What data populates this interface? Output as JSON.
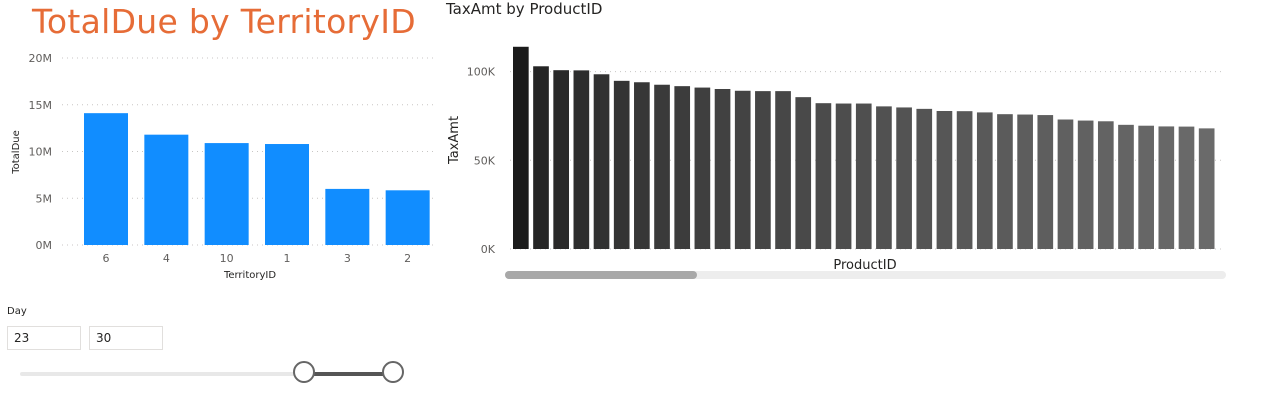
{
  "chart_data": [
    {
      "type": "bar",
      "title": "TotalDue by TerritoryID",
      "xlabel": "TerritoryID",
      "ylabel": "TotalDue",
      "categories": [
        "6",
        "4",
        "10",
        "1",
        "3",
        "2"
      ],
      "values": [
        14100000,
        11800000,
        10900000,
        10800000,
        6000000,
        5850000
      ],
      "ylim": [
        0,
        20000000
      ],
      "yticks": [
        0,
        5000000,
        10000000,
        15000000,
        20000000
      ],
      "ytick_labels": [
        "0M",
        "5M",
        "10M",
        "15M",
        "20M"
      ],
      "grid": true,
      "color": "#118dff"
    },
    {
      "type": "bar",
      "title": "TaxAmt by ProductID",
      "xlabel": "ProductID",
      "ylabel": "TaxAmt",
      "values": [
        114000,
        103000,
        100800,
        100700,
        98500,
        94800,
        94000,
        92600,
        91800,
        91000,
        90200,
        89200,
        89000,
        89000,
        85600,
        82200,
        82000,
        82000,
        80400,
        79800,
        79000,
        77800,
        77700,
        77000,
        76000,
        75800,
        75500,
        73000,
        72400,
        72000,
        70000,
        69500,
        69100,
        69000,
        68000
      ],
      "ylim": [
        0,
        115000
      ],
      "yticks": [
        0,
        50000,
        100000
      ],
      "ytick_labels": [
        "0K",
        "50K",
        "100K"
      ],
      "grid": true,
      "colors": {
        "first": "#1b1b1b",
        "last": "#6a6a6a"
      }
    }
  ],
  "slicer": {
    "title": "Day",
    "start_value": "23",
    "end_value": "30",
    "range_min": 1,
    "range_max": 31
  }
}
